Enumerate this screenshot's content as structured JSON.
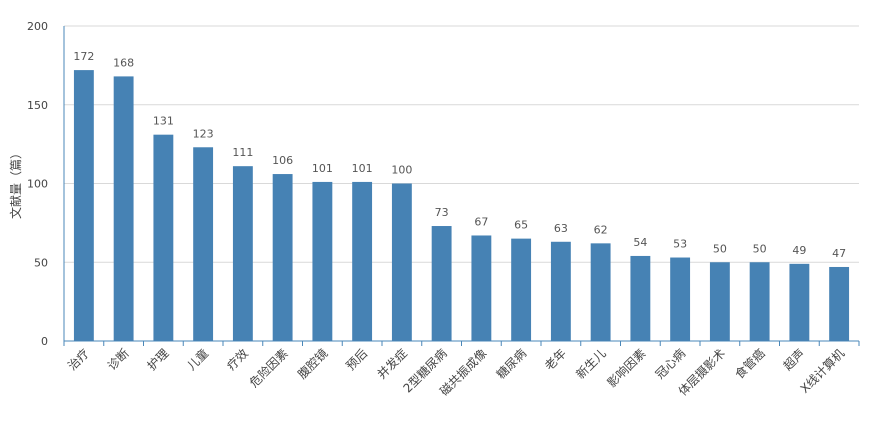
{
  "chart_data": {
    "type": "bar",
    "title": "",
    "xlabel": "",
    "ylabel": "文献量（篇）",
    "ylim": [
      0,
      200
    ],
    "yticks": [
      0,
      50,
      100,
      150,
      200
    ],
    "grid": true,
    "bar_color": "#4682b4",
    "categories": [
      "治疗",
      "诊断",
      "护理",
      "儿童",
      "疗效",
      "危险因素",
      "腹腔镜",
      "预后",
      "并发症",
      "2型糖尿病",
      "磁共振成像",
      "糖尿病",
      "老年",
      "新生儿",
      "影响因素",
      "冠心病",
      "体层摄影术",
      "食管癌",
      "超声",
      "X线计算机"
    ],
    "values": [
      172,
      168,
      131,
      123,
      111,
      106,
      101,
      101,
      100,
      73,
      67,
      65,
      63,
      62,
      54,
      53,
      50,
      50,
      49,
      47
    ]
  }
}
